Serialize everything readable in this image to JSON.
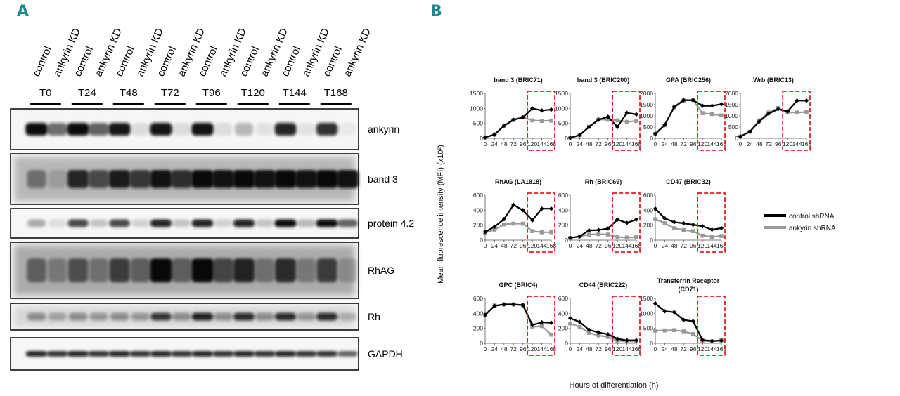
{
  "panels": {
    "a_letter": "A",
    "b_letter": "B"
  },
  "blot": {
    "lane_labels": [
      "control",
      "ankyrin KD",
      "control",
      "ankyrin KD",
      "control",
      "ankyrin KD",
      "control",
      "ankyrin KD",
      "control",
      "ankyrin KD",
      "control",
      "ankyrin KD",
      "control",
      "ankyrin KD",
      "control",
      "ankyrin KD"
    ],
    "timepoints": [
      "T0",
      "T24",
      "T48",
      "T72",
      "T96",
      "T120",
      "T144",
      "T168"
    ],
    "proteins": [
      "ankyrin",
      "band 3",
      "protein 4.2",
      "RhAG",
      "Rh",
      "GAPDH"
    ]
  },
  "colors": {
    "control": "#000000",
    "ankyrin": "#999999",
    "highlight": "#e02020",
    "panel_letter": "#1b8a8f"
  },
  "chart_data": [
    {
      "type": "line",
      "title": "band 3 (BRIC71)",
      "x": [
        0,
        24,
        48,
        72,
        96,
        120,
        144,
        168
      ],
      "ylim": [
        0,
        1500
      ],
      "yticks": [
        0,
        500,
        1000,
        1500
      ],
      "series": [
        {
          "name": "control shRNA",
          "values": [
            30,
            130,
            420,
            620,
            700,
            1000,
            930,
            960
          ]
        },
        {
          "name": "ankyrin shRNA",
          "values": [
            30,
            120,
            420,
            610,
            700,
            600,
            580,
            590
          ]
        }
      ]
    },
    {
      "type": "line",
      "title": "band 3 (BRIC200)",
      "x": [
        0,
        24,
        48,
        72,
        96,
        120,
        144,
        168
      ],
      "ylim": [
        0,
        1500
      ],
      "yticks": [
        0,
        500,
        1000,
        1500
      ],
      "series": [
        {
          "name": "control shRNA",
          "values": [
            20,
            110,
            380,
            620,
            720,
            380,
            850,
            800
          ]
        },
        {
          "name": "ankyrin shRNA",
          "values": [
            20,
            100,
            390,
            630,
            620,
            600,
            550,
            580
          ]
        }
      ]
    },
    {
      "type": "line",
      "title": "GPA (BRIC256)",
      "x": [
        0,
        24,
        48,
        72,
        96,
        120,
        144,
        168
      ],
      "ylim": [
        0,
        2000
      ],
      "yticks": [
        0,
        500,
        1000,
        1500,
        2000
      ],
      "series": [
        {
          "name": "control shRNA",
          "values": [
            200,
            600,
            1400,
            1700,
            1700,
            1450,
            1450,
            1520
          ]
        },
        {
          "name": "ankyrin shRNA",
          "values": [
            200,
            580,
            1380,
            1680,
            1700,
            1120,
            1080,
            1020
          ]
        }
      ]
    },
    {
      "type": "line",
      "title": "Wrb (BRIC13)",
      "x": [
        0,
        24,
        48,
        72,
        96,
        120,
        144,
        168
      ],
      "ylim": [
        0,
        2000
      ],
      "yticks": [
        0,
        500,
        1000,
        1500,
        2000
      ],
      "series": [
        {
          "name": "control shRNA",
          "values": [
            80,
            300,
            750,
            1100,
            1300,
            1200,
            1680,
            1680
          ]
        },
        {
          "name": "ankyrin shRNA",
          "values": [
            80,
            290,
            800,
            1150,
            1350,
            1150,
            1150,
            1170
          ]
        }
      ]
    },
    {
      "type": "line",
      "title": "RhAG (LA1818)",
      "x": [
        0,
        24,
        48,
        72,
        96,
        120,
        144,
        168
      ],
      "ylim": [
        0,
        600
      ],
      "yticks": [
        0,
        200,
        400,
        600
      ],
      "series": [
        {
          "name": "control shRNA",
          "values": [
            110,
            180,
            280,
            470,
            400,
            265,
            420,
            420
          ]
        },
        {
          "name": "ankyrin shRNA",
          "values": [
            100,
            140,
            210,
            220,
            220,
            120,
            105,
            105
          ]
        }
      ]
    },
    {
      "type": "line",
      "title": "Rh (BRIC69)",
      "x": [
        0,
        24,
        48,
        72,
        96,
        120,
        144,
        168
      ],
      "ylim": [
        0,
        600
      ],
      "yticks": [
        0,
        200,
        400,
        600
      ],
      "series": [
        {
          "name": "control shRNA",
          "values": [
            30,
            50,
            130,
            135,
            155,
            275,
            230,
            275
          ]
        },
        {
          "name": "ankyrin shRNA",
          "values": [
            30,
            50,
            75,
            80,
            75,
            40,
            35,
            40
          ]
        }
      ]
    },
    {
      "type": "line",
      "title": "CD47 (BRIC32)",
      "x": [
        0,
        24,
        48,
        72,
        96,
        120,
        144,
        168
      ],
      "ylim": [
        0,
        600
      ],
      "yticks": [
        0,
        200,
        400,
        600
      ],
      "series": [
        {
          "name": "control shRNA",
          "values": [
            420,
            290,
            240,
            225,
            205,
            185,
            140,
            160
          ]
        },
        {
          "name": "ankyrin shRNA",
          "values": [
            280,
            225,
            160,
            135,
            120,
            60,
            45,
            55
          ]
        }
      ]
    },
    {
      "type": "line",
      "title": "GPC (BRIC4)",
      "x": [
        0,
        24,
        48,
        72,
        96,
        120,
        144,
        168
      ],
      "ylim": [
        0,
        600
      ],
      "yticks": [
        0,
        200,
        400,
        600
      ],
      "series": [
        {
          "name": "control shRNA",
          "values": [
            380,
            500,
            520,
            520,
            510,
            245,
            280,
            275
          ]
        },
        {
          "name": "ankyrin shRNA",
          "values": [
            375,
            505,
            520,
            520,
            510,
            220,
            230,
            115
          ]
        }
      ]
    },
    {
      "type": "line",
      "title": "CD44 (BRIC222)",
      "x": [
        0,
        24,
        48,
        72,
        96,
        120,
        144,
        168
      ],
      "ylim": [
        0,
        600
      ],
      "yticks": [
        0,
        200,
        400,
        600
      ],
      "series": [
        {
          "name": "control shRNA",
          "values": [
            335,
            285,
            180,
            145,
            120,
            60,
            40,
            40
          ]
        },
        {
          "name": "ankyrin shRNA",
          "values": [
            265,
            220,
            140,
            105,
            85,
            35,
            25,
            25
          ]
        }
      ]
    },
    {
      "type": "line",
      "title": "Transferrin Receptor (CD71)",
      "x": [
        0,
        24,
        48,
        72,
        96,
        120,
        144,
        168
      ],
      "ylim": [
        0,
        1500
      ],
      "yticks": [
        0,
        500,
        1000,
        1500
      ],
      "series": [
        {
          "name": "control shRNA",
          "values": [
            1330,
            1070,
            1040,
            780,
            740,
            110,
            80,
            90
          ]
        },
        {
          "name": "ankyrin shRNA",
          "values": [
            420,
            430,
            440,
            400,
            310,
            90,
            60,
            100
          ]
        }
      ]
    }
  ],
  "chart_meta": {
    "y_axis_title": "Mean fluorescence intensity (MFI) (x10²)",
    "x_axis_title": "Hours of differentiation (h)",
    "x_tick_labels": [
      "0",
      "24",
      "48",
      "72",
      "96",
      "120",
      "144",
      "168"
    ],
    "legend": [
      "control shRNA",
      "ankyrin shRNA"
    ],
    "highlight_range": [
      120,
      168
    ]
  }
}
